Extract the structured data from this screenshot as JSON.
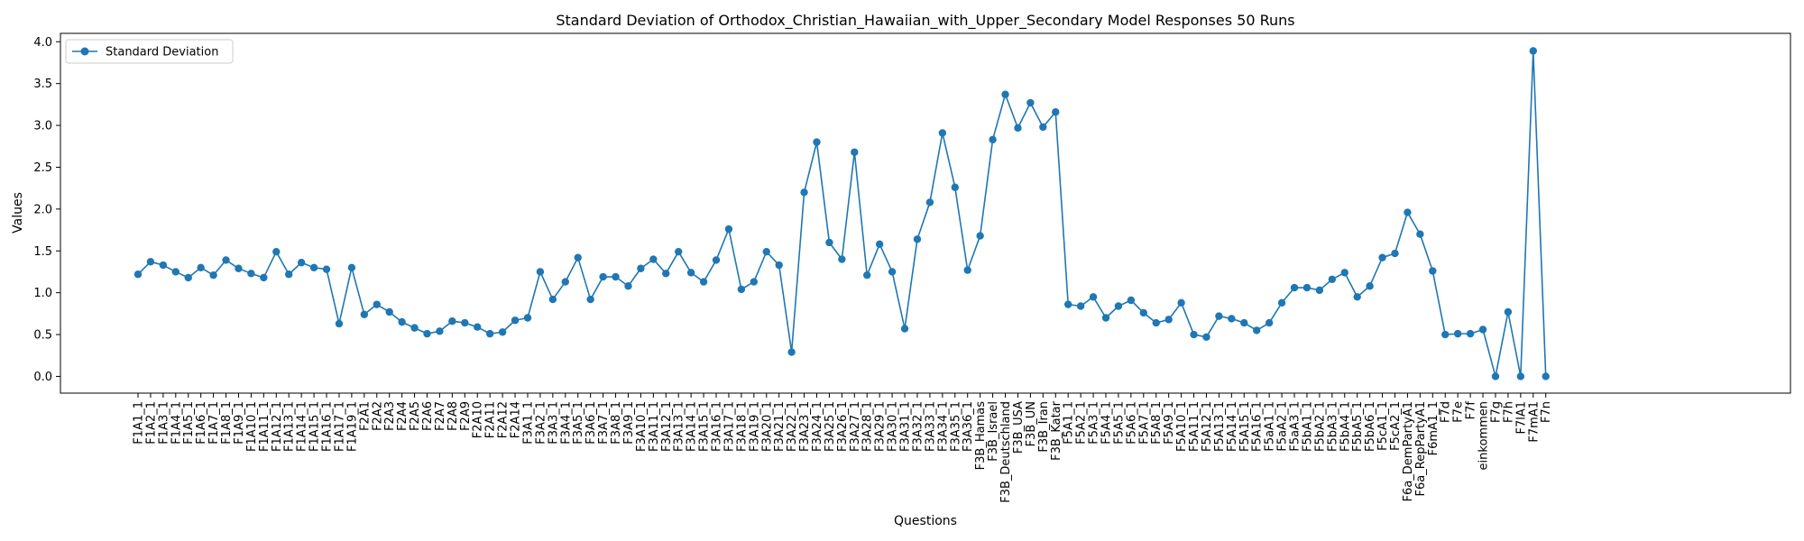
{
  "chart_data": {
    "type": "line",
    "title": "Standard Deviation of Orthodox_Christian_Hawaiian_with_Upper_Secondary Model Responses 50 Runs",
    "xlabel": "Questions",
    "ylabel": "Values",
    "ylim": [
      -0.2,
      4.1
    ],
    "yticks": [
      "0.0",
      "0.5",
      "1.0",
      "1.5",
      "2.0",
      "2.5",
      "3.0",
      "3.5",
      "4.0"
    ],
    "grid": false,
    "legend_position": "top-left",
    "categories": [
      "F1A1_1",
      "F1A2_1",
      "F1A3_1",
      "F1A4_1",
      "F1A5_1",
      "F1A6_1",
      "F1A7_1",
      "F1A8_1",
      "F1A9_1",
      "F1A10_1",
      "F1A11_1",
      "F1A12_1",
      "F1A13_1",
      "F1A14_1",
      "F1A15_1",
      "F1A16_1",
      "F1A17_1",
      "F1A19_1",
      "F2A1",
      "F2A2",
      "F2A3",
      "F2A4",
      "F2A5",
      "F2A6",
      "F2A7",
      "F2A8",
      "F2A9",
      "F2A10",
      "F2A11",
      "F2A12",
      "F2A14",
      "F3A1_1",
      "F3A2_1",
      "F3A3_1",
      "F3A4_1",
      "F3A5_1",
      "F3A6_1",
      "F3A7_1",
      "F3A8_1",
      "F3A9_1",
      "F3A10_1",
      "F3A11_1",
      "F3A12_1",
      "F3A13_1",
      "F3A14_1",
      "F3A15_1",
      "F3A16_1",
      "F3A17_1",
      "F3A18_1",
      "F3A19_1",
      "F3A20_1",
      "F3A21_1",
      "F3A22_1",
      "F3A23_1",
      "F3A24_1",
      "F3A25_1",
      "F3A26_1",
      "F3A27_1",
      "F3A28_1",
      "F3A29_1",
      "F3A30_1",
      "F3A31_1",
      "F3A32_1",
      "F3A33_1",
      "F3A34_1",
      "F3A35_1",
      "F3A36_1",
      "F3B_Hamas",
      "F3B_Israel",
      "F3B_Deutschland",
      "F3B_USA",
      "F3B_UN",
      "F3B_Iran",
      "F3B_Katar",
      "F5A1_1",
      "F5A2_1",
      "F5A3_1",
      "F5A4_1",
      "F5A5_1",
      "F5A6_1",
      "F5A7_1",
      "F5A8_1",
      "F5A9_1",
      "F5A10_1",
      "F5A11_1",
      "F5A12_1",
      "F5A13_1",
      "F5A14_1",
      "F5A15_1",
      "F5A16_1",
      "F5aA1_1",
      "F5aA2_1",
      "F5aA3_1",
      "F5bA1_1",
      "F5bA2_1",
      "F5bA3_1",
      "F5bA4_1",
      "F5bA5_1",
      "F5bA6_1",
      "F5cA1_1",
      "F5cA2_1",
      "F6a_DemPartyA1",
      "F6a_RepPartyA1",
      "F6mA1_1",
      "F7d",
      "F7e",
      "F7f",
      "einkommen",
      "F7g",
      "F7h",
      "F7lA1",
      "F7mA1",
      "F7n"
    ],
    "series": [
      {
        "name": "Standard Deviation",
        "color": "#1f77b4",
        "values": [
          1.22,
          1.37,
          1.33,
          1.25,
          1.18,
          1.3,
          1.21,
          1.39,
          1.29,
          1.23,
          1.18,
          1.49,
          1.22,
          1.36,
          1.3,
          1.28,
          0.63,
          1.3,
          0.74,
          0.86,
          0.77,
          0.65,
          0.58,
          0.51,
          0.54,
          0.66,
          0.64,
          0.59,
          0.51,
          0.53,
          0.67,
          0.7,
          1.25,
          0.92,
          1.13,
          1.42,
          0.92,
          1.19,
          1.19,
          1.08,
          1.29,
          1.4,
          1.23,
          1.49,
          1.24,
          1.13,
          1.39,
          1.76,
          1.04,
          1.13,
          1.49,
          1.33,
          0.29,
          2.2,
          2.8,
          1.6,
          1.4,
          2.68,
          1.21,
          1.58,
          1.25,
          0.57,
          1.64,
          2.08,
          2.91,
          2.26,
          1.27,
          1.68,
          2.83,
          3.37,
          2.97,
          3.27,
          2.98,
          3.16,
          0.86,
          0.84,
          0.95,
          0.7,
          0.84,
          0.91,
          0.76,
          0.64,
          0.68,
          0.88,
          0.5,
          0.47,
          0.72,
          0.69,
          0.64,
          0.55,
          0.64,
          0.88,
          1.06,
          1.06,
          1.03,
          1.16,
          1.24,
          0.95,
          1.08,
          1.42,
          1.47,
          1.96,
          1.7,
          1.26,
          0.5,
          0.51,
          0.51,
          0.56,
          0.0,
          0.77,
          0.0,
          3.89,
          0.0
        ]
      }
    ]
  }
}
